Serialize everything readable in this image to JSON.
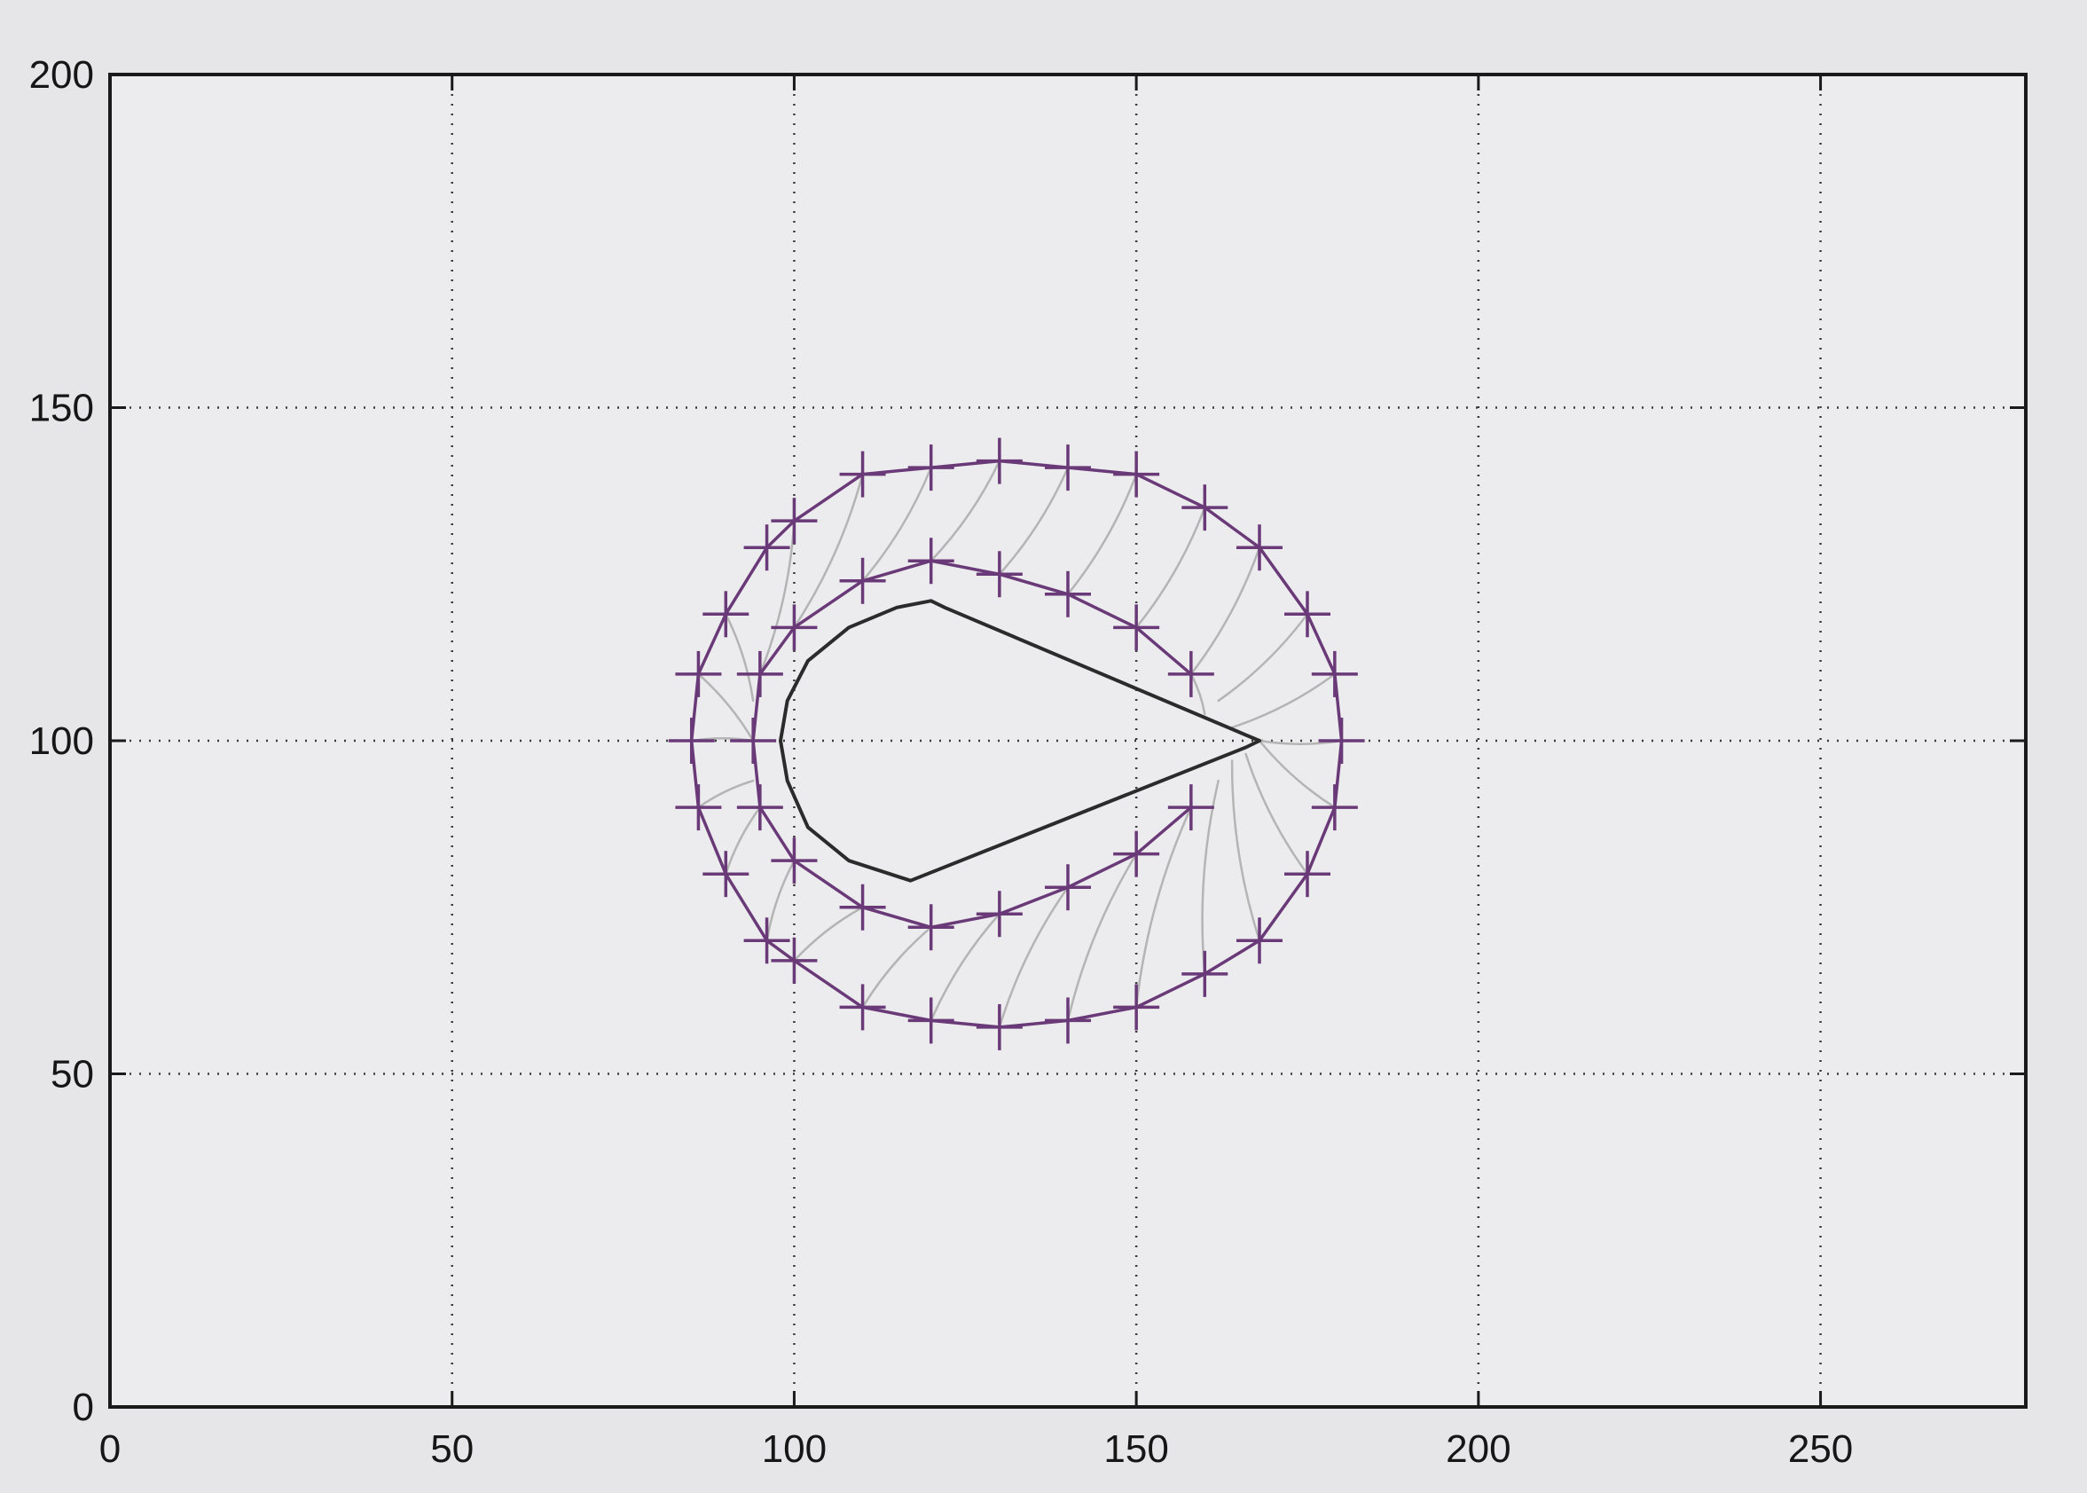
{
  "chart_data": {
    "type": "line",
    "title": "",
    "xlabel": "",
    "ylabel": "",
    "xlim": [
      0,
      280
    ],
    "ylim": [
      0,
      200
    ],
    "x_ticks": [
      0,
      50,
      100,
      150,
      200,
      250
    ],
    "y_ticks": [
      0,
      50,
      100,
      150,
      200
    ],
    "x_tick_labels": [
      "0",
      "50",
      "100",
      "150",
      "200",
      "250"
    ],
    "y_tick_labels": [
      "0",
      "50",
      "100",
      "150",
      "200"
    ],
    "grid": true,
    "legend": "none",
    "colors": {
      "marker_curves": "#6a3a78",
      "inner_shape": "#2b2b2b",
      "pencil_lines": "#b4b4b4",
      "axes": "#1a1a1a",
      "grid": "#3a3a3a",
      "background": "#e6e6e8"
    },
    "series": [
      {
        "style": "line-with-plus-markers",
        "color": "#6a3a78",
        "points": [
          [
            180,
            100
          ],
          [
            179,
            110
          ],
          [
            175,
            119
          ],
          [
            168,
            129
          ],
          [
            160,
            135
          ],
          [
            150,
            140
          ],
          [
            140,
            141
          ],
          [
            130,
            142
          ],
          [
            120,
            141
          ],
          [
            110,
            140
          ],
          [
            100,
            133
          ],
          [
            96,
            129
          ],
          [
            90,
            119
          ],
          [
            86,
            110
          ],
          [
            85,
            100
          ],
          [
            86,
            90
          ],
          [
            90,
            80
          ],
          [
            96,
            70
          ],
          [
            100,
            67
          ],
          [
            110,
            60
          ],
          [
            120,
            58
          ],
          [
            130,
            57
          ],
          [
            140,
            58
          ],
          [
            150,
            60
          ],
          [
            160,
            65
          ],
          [
            168,
            70
          ],
          [
            175,
            80
          ],
          [
            179,
            90
          ],
          [
            180,
            100
          ]
        ]
      },
      {
        "style": "line-with-plus-markers",
        "color": "#6a3a78",
        "points": [
          [
            158,
            110
          ],
          [
            150,
            117
          ],
          [
            140,
            122
          ],
          [
            130,
            125
          ],
          [
            120,
            127
          ],
          [
            110,
            124
          ],
          [
            100,
            117
          ],
          [
            95,
            110
          ],
          [
            94,
            100
          ],
          [
            95,
            90
          ],
          [
            100,
            82
          ],
          [
            110,
            75
          ],
          [
            120,
            72
          ],
          [
            130,
            74
          ],
          [
            140,
            78
          ],
          [
            150,
            83
          ],
          [
            158,
            90
          ]
        ]
      },
      {
        "style": "line",
        "color": "#2b2b2b",
        "points": [
          [
            168,
            100
          ],
          [
            122,
            120
          ],
          [
            120,
            121
          ],
          [
            115,
            120
          ],
          [
            108,
            117
          ],
          [
            102,
            112
          ],
          [
            99,
            106
          ],
          [
            98,
            100
          ],
          [
            99,
            94
          ],
          [
            102,
            87
          ],
          [
            108,
            82
          ],
          [
            114,
            80
          ],
          [
            117,
            79
          ],
          [
            166,
            99
          ],
          [
            168,
            100
          ]
        ]
      }
    ],
    "connector_lines": [
      [
        [
          168,
          100
        ],
        [
          180,
          100
        ]
      ],
      [
        [
          164,
          102
        ],
        [
          179,
          110
        ]
      ],
      [
        [
          162,
          106
        ],
        [
          175,
          119
        ]
      ],
      [
        [
          160,
          104
        ],
        [
          158,
          110
        ]
      ],
      [
        [
          158,
          110
        ],
        [
          168,
          129
        ]
      ],
      [
        [
          150,
          117
        ],
        [
          160,
          135
        ]
      ],
      [
        [
          140,
          122
        ],
        [
          150,
          140
        ]
      ],
      [
        [
          130,
          125
        ],
        [
          140,
          141
        ]
      ],
      [
        [
          120,
          127
        ],
        [
          130,
          142
        ]
      ],
      [
        [
          110,
          124
        ],
        [
          120,
          141
        ]
      ],
      [
        [
          100,
          117
        ],
        [
          110,
          140
        ]
      ],
      [
        [
          95,
          110
        ],
        [
          100,
          133
        ]
      ],
      [
        [
          94,
          106
        ],
        [
          90,
          119
        ]
      ],
      [
        [
          94,
          100
        ],
        [
          86,
          110
        ]
      ],
      [
        [
          94,
          100
        ],
        [
          85,
          100
        ]
      ],
      [
        [
          94,
          94
        ],
        [
          86,
          90
        ]
      ],
      [
        [
          95,
          90
        ],
        [
          90,
          80
        ]
      ],
      [
        [
          100,
          82
        ],
        [
          96,
          70
        ]
      ],
      [
        [
          110,
          75
        ],
        [
          100,
          67
        ]
      ],
      [
        [
          120,
          72
        ],
        [
          110,
          60
        ]
      ],
      [
        [
          130,
          74
        ],
        [
          120,
          58
        ]
      ],
      [
        [
          140,
          78
        ],
        [
          130,
          57
        ]
      ],
      [
        [
          150,
          83
        ],
        [
          140,
          58
        ]
      ],
      [
        [
          158,
          90
        ],
        [
          150,
          60
        ]
      ],
      [
        [
          162,
          94
        ],
        [
          160,
          65
        ]
      ],
      [
        [
          164,
          97
        ],
        [
          168,
          70
        ]
      ],
      [
        [
          166,
          98
        ],
        [
          175,
          80
        ]
      ],
      [
        [
          168,
          100
        ],
        [
          179,
          90
        ]
      ]
    ]
  }
}
